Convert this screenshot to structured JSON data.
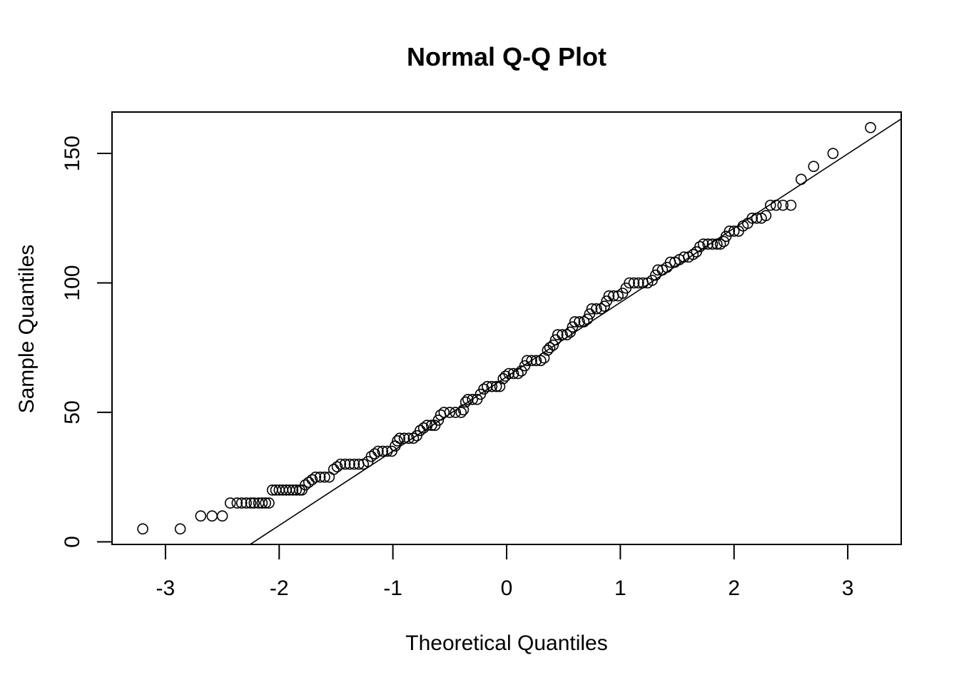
{
  "chart_data": {
    "type": "scatter",
    "title": "Normal Q-Q Plot",
    "xlabel": "Theoretical Quantiles",
    "ylabel": "Sample Quantiles",
    "xlim": [
      -3.47,
      3.47
    ],
    "ylim": [
      -1,
      166
    ],
    "x_ticks": [
      -3,
      -2,
      -1,
      0,
      1,
      2,
      3
    ],
    "x_tick_labels": [
      "-3",
      "-2",
      "-1",
      "0",
      "1",
      "2",
      "3"
    ],
    "y_ticks": [
      0,
      50,
      100,
      150
    ],
    "y_tick_labels": [
      "0",
      "50",
      "100",
      "150"
    ],
    "grid": false,
    "marker": "open-circle",
    "reference_line": {
      "intercept": 63.75,
      "slope": 28.7
    },
    "points": [
      [
        -3.2,
        5
      ],
      [
        -2.87,
        5
      ],
      [
        -2.69,
        10
      ],
      [
        -2.59,
        10
      ],
      [
        -2.5,
        10
      ],
      [
        -2.43,
        15
      ],
      [
        -2.37,
        15
      ],
      [
        -2.33,
        15
      ],
      [
        -2.29,
        15
      ],
      [
        -2.25,
        15
      ],
      [
        -2.22,
        15
      ],
      [
        -2.18,
        15
      ],
      [
        -2.15,
        15
      ],
      [
        -2.12,
        15
      ],
      [
        -2.09,
        15
      ],
      [
        -2.06,
        20
      ],
      [
        -2.03,
        20
      ],
      [
        -2.0,
        20
      ],
      [
        -1.97,
        20
      ],
      [
        -1.94,
        20
      ],
      [
        -1.91,
        20
      ],
      [
        -1.88,
        20
      ],
      [
        -1.85,
        20
      ],
      [
        -1.82,
        20
      ],
      [
        -1.8,
        20
      ],
      [
        -1.77,
        22
      ],
      [
        -1.74,
        23
      ],
      [
        -1.71,
        24
      ],
      [
        -1.68,
        25
      ],
      [
        -1.64,
        25
      ],
      [
        -1.6,
        25
      ],
      [
        -1.56,
        25
      ],
      [
        -1.52,
        28
      ],
      [
        -1.49,
        29
      ],
      [
        -1.46,
        30
      ],
      [
        -1.42,
        30
      ],
      [
        -1.38,
        30
      ],
      [
        -1.34,
        30
      ],
      [
        -1.3,
        30
      ],
      [
        -1.26,
        30
      ],
      [
        -1.22,
        31
      ],
      [
        -1.19,
        33
      ],
      [
        -1.16,
        34
      ],
      [
        -1.13,
        35
      ],
      [
        -1.09,
        35
      ],
      [
        -1.05,
        35
      ],
      [
        -1.01,
        35
      ],
      [
        -0.98,
        37
      ],
      [
        -0.96,
        39
      ],
      [
        -0.94,
        40
      ],
      [
        -0.9,
        40
      ],
      [
        -0.86,
        40
      ],
      [
        -0.82,
        40
      ],
      [
        -0.79,
        41
      ],
      [
        -0.76,
        43
      ],
      [
        -0.73,
        44
      ],
      [
        -0.7,
        45
      ],
      [
        -0.66,
        45
      ],
      [
        -0.63,
        45
      ],
      [
        -0.6,
        47
      ],
      [
        -0.58,
        49
      ],
      [
        -0.55,
        50
      ],
      [
        -0.5,
        50
      ],
      [
        -0.45,
        50
      ],
      [
        -0.4,
        50
      ],
      [
        -0.38,
        51
      ],
      [
        -0.36,
        54
      ],
      [
        -0.34,
        55
      ],
      [
        -0.3,
        55
      ],
      [
        -0.26,
        55
      ],
      [
        -0.23,
        57
      ],
      [
        -0.2,
        59
      ],
      [
        -0.17,
        60
      ],
      [
        -0.13,
        60
      ],
      [
        -0.09,
        60
      ],
      [
        -0.06,
        60
      ],
      [
        -0.03,
        63
      ],
      [
        -0.01,
        64
      ],
      [
        0.02,
        65
      ],
      [
        0.06,
        65
      ],
      [
        0.1,
        65
      ],
      [
        0.13,
        66
      ],
      [
        0.16,
        68
      ],
      [
        0.18,
        70
      ],
      [
        0.22,
        70
      ],
      [
        0.26,
        70
      ],
      [
        0.3,
        70
      ],
      [
        0.33,
        71
      ],
      [
        0.36,
        74
      ],
      [
        0.38,
        75
      ],
      [
        0.41,
        76
      ],
      [
        0.43,
        78
      ],
      [
        0.45,
        80
      ],
      [
        0.49,
        80
      ],
      [
        0.53,
        80
      ],
      [
        0.56,
        81
      ],
      [
        0.58,
        83
      ],
      [
        0.6,
        85
      ],
      [
        0.64,
        85
      ],
      [
        0.68,
        85
      ],
      [
        0.71,
        86
      ],
      [
        0.73,
        88
      ],
      [
        0.75,
        90
      ],
      [
        0.79,
        90
      ],
      [
        0.83,
        90
      ],
      [
        0.86,
        91
      ],
      [
        0.88,
        93
      ],
      [
        0.9,
        95
      ],
      [
        0.94,
        95
      ],
      [
        0.98,
        95
      ],
      [
        1.02,
        96
      ],
      [
        1.05,
        98
      ],
      [
        1.08,
        100
      ],
      [
        1.12,
        100
      ],
      [
        1.16,
        100
      ],
      [
        1.2,
        100
      ],
      [
        1.24,
        100
      ],
      [
        1.28,
        101
      ],
      [
        1.31,
        103
      ],
      [
        1.33,
        105
      ],
      [
        1.37,
        105
      ],
      [
        1.41,
        106
      ],
      [
        1.44,
        108
      ],
      [
        1.48,
        108
      ],
      [
        1.52,
        109
      ],
      [
        1.56,
        110
      ],
      [
        1.6,
        110
      ],
      [
        1.64,
        111
      ],
      [
        1.67,
        112
      ],
      [
        1.7,
        114
      ],
      [
        1.73,
        115
      ],
      [
        1.77,
        115
      ],
      [
        1.81,
        115
      ],
      [
        1.85,
        115
      ],
      [
        1.88,
        115
      ],
      [
        1.91,
        116
      ],
      [
        1.93,
        118
      ],
      [
        1.96,
        120
      ],
      [
        2.0,
        120
      ],
      [
        2.04,
        120
      ],
      [
        2.08,
        122
      ],
      [
        2.12,
        123
      ],
      [
        2.16,
        125
      ],
      [
        2.2,
        125
      ],
      [
        2.24,
        125
      ],
      [
        2.28,
        126
      ],
      [
        2.32,
        130
      ],
      [
        2.37,
        130
      ],
      [
        2.43,
        130
      ],
      [
        2.5,
        130
      ],
      [
        2.59,
        140
      ],
      [
        2.7,
        145
      ],
      [
        2.87,
        150
      ],
      [
        3.2,
        160
      ]
    ]
  }
}
